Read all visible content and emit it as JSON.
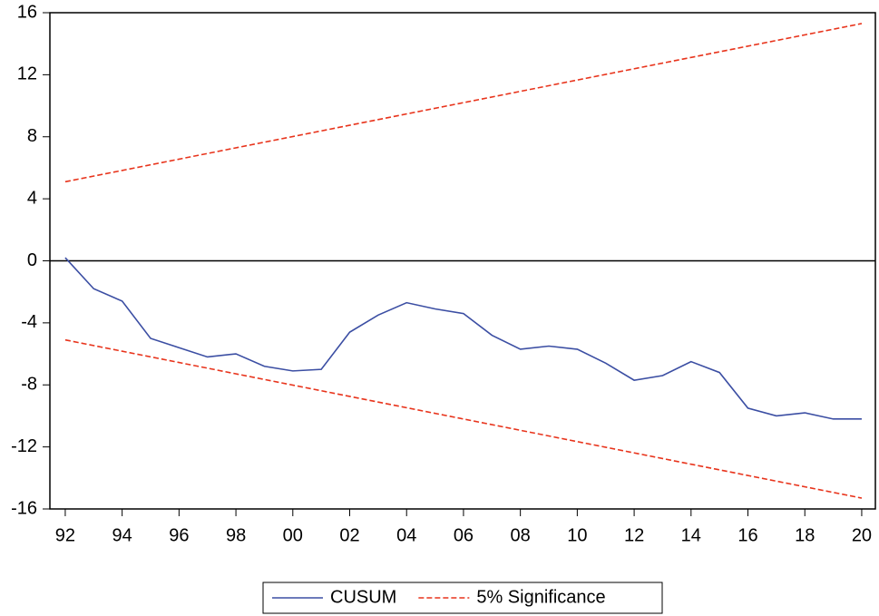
{
  "chart_data": {
    "type": "line",
    "series": [
      {
        "name": "CUSUM",
        "color": "#3b4ea3",
        "dashed": false,
        "x": [
          1992,
          1993,
          1994,
          1995,
          1996,
          1997,
          1998,
          1999,
          2000,
          2001,
          2002,
          2003,
          2004,
          2005,
          2006,
          2007,
          2008,
          2009,
          2010,
          2011,
          2012,
          2013,
          2014,
          2015,
          2016,
          2017,
          2018,
          2019,
          2020
        ],
        "values": [
          0.2,
          -1.8,
          -2.6,
          -5.0,
          -5.6,
          -6.2,
          -6.0,
          -6.8,
          -7.1,
          -7.0,
          -4.6,
          -3.5,
          -2.7,
          -3.1,
          -3.4,
          -4.8,
          -5.7,
          -5.5,
          -5.7,
          -6.6,
          -7.7,
          -7.4,
          -6.5,
          -7.2,
          -9.5,
          -10.0,
          -9.8,
          -10.2,
          -10.2
        ]
      },
      {
        "name": "5% Significance",
        "color": "#e8341c",
        "dashed": true,
        "x": [
          1992,
          2020
        ],
        "values": [
          5.1,
          15.3
        ],
        "lower": [
          -5.1,
          -15.3
        ]
      }
    ],
    "xlim": [
      1991.46,
      2020.48
    ],
    "xticks": [
      {
        "value": 1992,
        "label": "92"
      },
      {
        "value": 1994,
        "label": "94"
      },
      {
        "value": 1996,
        "label": "96"
      },
      {
        "value": 1998,
        "label": "98"
      },
      {
        "value": 2000,
        "label": "00"
      },
      {
        "value": 2002,
        "label": "02"
      },
      {
        "value": 2004,
        "label": "04"
      },
      {
        "value": 2006,
        "label": "06"
      },
      {
        "value": 2008,
        "label": "08"
      },
      {
        "value": 2010,
        "label": "10"
      },
      {
        "value": 2012,
        "label": "12"
      },
      {
        "value": 2014,
        "label": "14"
      },
      {
        "value": 2016,
        "label": "16"
      },
      {
        "value": 2018,
        "label": "18"
      },
      {
        "value": 2020,
        "label": "20"
      }
    ],
    "ylim": [
      -16,
      16
    ],
    "yticks": [
      16,
      12,
      8,
      4,
      0,
      -4,
      -8,
      -12,
      -16
    ],
    "zero_line": true,
    "legend": "bottom"
  }
}
